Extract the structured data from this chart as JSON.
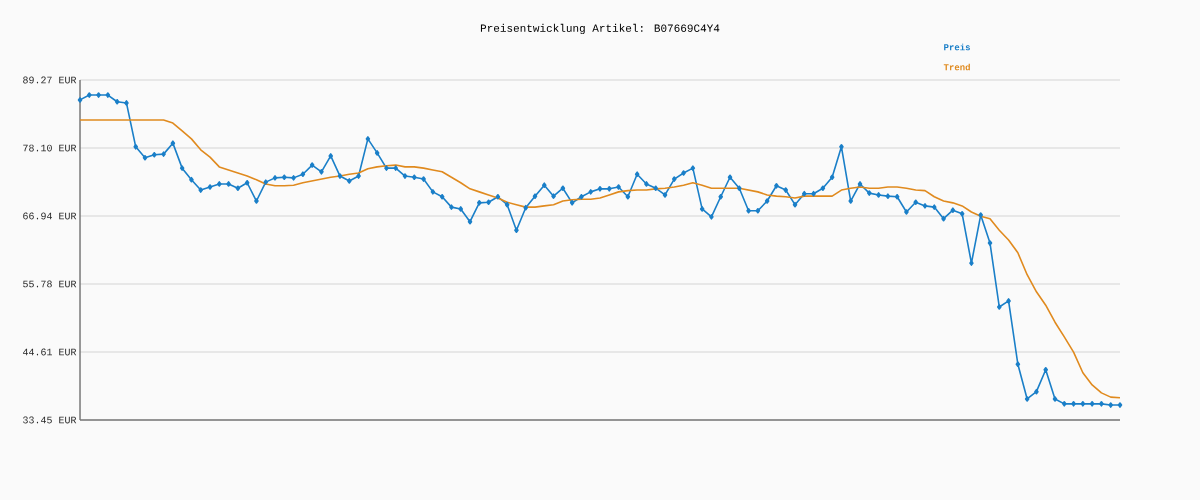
{
  "chart_data": {
    "type": "line",
    "title": "Preisentwicklung Artikel: B07669C4Y4",
    "categories": [
      null,
      null,
      null,
      null,
      null,
      null,
      null,
      null,
      null,
      null,
      null,
      null,
      null,
      null,
      null,
      null,
      null,
      null,
      null,
      null,
      null,
      null,
      null,
      null,
      null,
      null,
      null,
      null,
      null,
      null,
      null,
      null,
      null,
      null,
      null,
      null,
      null,
      null,
      null,
      null,
      null,
      null,
      null,
      null,
      null,
      null,
      null,
      null,
      null,
      null,
      null,
      null,
      null,
      null,
      null,
      null,
      null,
      null,
      null,
      null,
      null,
      null,
      null,
      null,
      null,
      null,
      null,
      null,
      null,
      null,
      null,
      null,
      null,
      null,
      null,
      null,
      null,
      null,
      null,
      null,
      null,
      null,
      null,
      null,
      null,
      null,
      null,
      null,
      null,
      null,
      null,
      null,
      null,
      null,
      null,
      null,
      null,
      null,
      null,
      null,
      null,
      null,
      null,
      null,
      null,
      null,
      null,
      null,
      null,
      null,
      null,
      null,
      null
    ],
    "series": [
      {
        "name": "Preis",
        "color": "#1a7fc8",
        "values": [
          86.0,
          86.8,
          86.8,
          86.8,
          85.7,
          85.5,
          78.3,
          76.5,
          77.0,
          77.1,
          78.9,
          74.8,
          72.9,
          71.2,
          71.7,
          72.2,
          72.2,
          71.5,
          72.4,
          69.4,
          72.5,
          73.2,
          73.3,
          73.2,
          73.8,
          75.3,
          74.2,
          76.8,
          73.5,
          72.7,
          73.5,
          79.6,
          77.3,
          74.8,
          74.8,
          73.5,
          73.3,
          73.0,
          70.9,
          70.1,
          68.4,
          68.1,
          66.0,
          69.1,
          69.2,
          70.1,
          68.8,
          64.6,
          68.3,
          70.2,
          72.0,
          70.2,
          71.5,
          69.1,
          70.1,
          70.9,
          71.4,
          71.4,
          71.7,
          70.1,
          73.8,
          72.2,
          71.5,
          70.4,
          73.0,
          74.0,
          74.8,
          68.1,
          66.8,
          70.1,
          73.3,
          71.5,
          67.8,
          67.8,
          69.4,
          71.9,
          71.2,
          68.8,
          70.6,
          70.6,
          71.5,
          73.3,
          78.3,
          69.4,
          72.2,
          70.7,
          70.4,
          70.2,
          70.1,
          67.6,
          69.2,
          68.6,
          68.4,
          66.5,
          67.9,
          67.3,
          59.2,
          67.1,
          62.5,
          52.0,
          53.0,
          42.6,
          36.9,
          38.1,
          41.7,
          36.9,
          36.1,
          36.1,
          36.1,
          36.1,
          36.1,
          35.9,
          35.9
        ]
      },
      {
        "name": "Trend",
        "color": "#e08a1e",
        "marker": "none",
        "values": [
          82.7,
          82.7,
          82.7,
          82.7,
          82.7,
          82.7,
          82.7,
          82.7,
          82.7,
          82.7,
          82.2,
          80.9,
          79.6,
          77.8,
          76.6,
          75.0,
          74.5,
          74.0,
          73.5,
          72.9,
          72.2,
          71.9,
          71.9,
          72.0,
          72.4,
          72.7,
          73.0,
          73.3,
          73.5,
          73.8,
          74.0,
          74.7,
          75.0,
          75.2,
          75.3,
          75.0,
          75.0,
          74.8,
          74.5,
          74.2,
          73.3,
          72.4,
          71.4,
          70.9,
          70.4,
          69.9,
          69.2,
          68.8,
          68.4,
          68.4,
          68.6,
          68.8,
          69.4,
          69.6,
          69.7,
          69.7,
          69.9,
          70.4,
          70.9,
          71.1,
          71.2,
          71.2,
          71.4,
          71.5,
          71.7,
          72.0,
          72.4,
          72.0,
          71.5,
          71.5,
          71.5,
          71.5,
          71.2,
          70.9,
          70.4,
          70.2,
          70.1,
          69.9,
          70.2,
          70.2,
          70.2,
          70.2,
          71.2,
          71.5,
          71.7,
          71.5,
          71.5,
          71.7,
          71.7,
          71.5,
          71.2,
          71.1,
          70.1,
          69.4,
          69.1,
          68.6,
          67.6,
          66.9,
          66.5,
          64.6,
          63.0,
          60.9,
          57.3,
          54.5,
          52.3,
          49.5,
          47.1,
          44.6,
          41.2,
          39.2,
          37.9,
          37.2,
          37.1
        ]
      }
    ],
    "ylim": [
      33.45,
      89.27
    ],
    "yticks": [
      {
        "value": 33.45,
        "label": "33.45 EUR"
      },
      {
        "value": 44.61,
        "label": "44.61 EUR"
      },
      {
        "value": 55.78,
        "label": "55.78 EUR"
      },
      {
        "value": 66.94,
        "label": "66.94 EUR"
      },
      {
        "value": 78.1,
        "label": "78.10 EUR"
      },
      {
        "value": 89.27,
        "label": "89.27 EUR"
      }
    ],
    "grid": "y",
    "legend": "top right",
    "tick_labels": "y",
    "marker": "diamond",
    "line_style": "solid"
  }
}
